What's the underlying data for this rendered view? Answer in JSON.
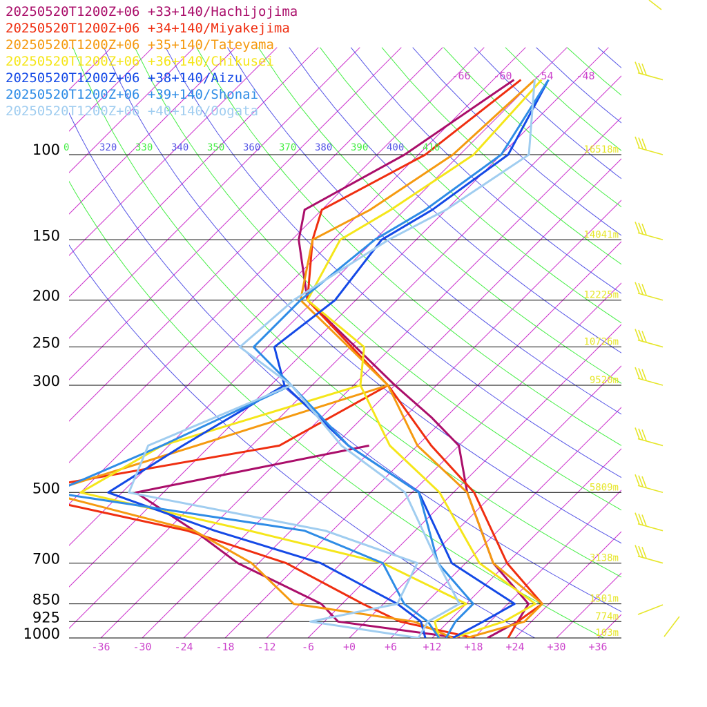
{
  "chart_data": {
    "type": "line",
    "chart_kind": "skew-T log-P sounding",
    "x_axis": {
      "label": "",
      "ticks": [
        "-36",
        "-30",
        "-24",
        "-18",
        "-12",
        "-6",
        "+0",
        "+6",
        "+12",
        "+18",
        "+24",
        "+30",
        "+36"
      ],
      "tick_values": [
        -36,
        -30,
        -24,
        -18,
        -12,
        -6,
        0,
        6,
        12,
        18,
        24,
        30,
        36
      ]
    },
    "y_axis": {
      "label": "",
      "scale": "log",
      "ticks": [
        "100",
        "150",
        "200",
        "250",
        "300",
        "500",
        "700",
        "850",
        "925",
        "1000"
      ],
      "tick_values": [
        100,
        150,
        200,
        250,
        300,
        500,
        700,
        850,
        925,
        1000
      ]
    },
    "height_labels": [
      {
        "p": 100,
        "text": "16518m"
      },
      {
        "p": 150,
        "text": "14041m"
      },
      {
        "p": 200,
        "text": "12225m"
      },
      {
        "p": 250,
        "text": "10726m"
      },
      {
        "p": 300,
        "text": "9520m"
      },
      {
        "p": 500,
        "text": "5809m"
      },
      {
        "p": 700,
        "text": "3138m"
      },
      {
        "p": 850,
        "text": "1501m"
      },
      {
        "p": 925,
        "text": "774m"
      },
      {
        "p": 1000,
        "text": "103m"
      }
    ],
    "theta_labels": [
      "0",
      "320",
      "330",
      "340",
      "350",
      "360",
      "370",
      "380",
      "390",
      "400",
      "410"
    ],
    "upper_temp_labels": [
      "-66",
      "-60",
      "-54",
      "-48"
    ],
    "grid": true,
    "legend_position": "top-left",
    "series": [
      {
        "name": "20250520T1200Z+06 +33+140/Hachijojima",
        "color": "#aa0e6a",
        "temperature": [
          [
            70,
            -57
          ],
          [
            100,
            -62
          ],
          [
            130,
            -68.5
          ],
          [
            150,
            -65
          ],
          [
            200,
            -55
          ],
          [
            300,
            -30
          ],
          [
            350,
            -20
          ],
          [
            400,
            -12
          ],
          [
            500,
            -4
          ],
          [
            700,
            10
          ],
          [
            850,
            21
          ],
          [
            925,
            22
          ],
          [
            1000,
            20
          ]
        ],
        "dewpoint": [
          [
            400,
            -25
          ],
          [
            500,
            -52
          ],
          [
            600,
            -38
          ],
          [
            700,
            -27
          ],
          [
            850,
            -9
          ],
          [
            925,
            -4
          ],
          [
            1000,
            16
          ]
        ]
      },
      {
        "name": "20250520T1200Z+06 +34+140/Miyakejima",
        "color": "#ef2e10",
        "temperature": [
          [
            70,
            -56
          ],
          [
            100,
            -59
          ],
          [
            130,
            -66
          ],
          [
            150,
            -63
          ],
          [
            200,
            -55
          ],
          [
            300,
            -31
          ],
          [
            400,
            -16
          ],
          [
            500,
            -3
          ],
          [
            700,
            12
          ],
          [
            850,
            23
          ],
          [
            925,
            22
          ],
          [
            1000,
            23
          ]
        ],
        "dewpoint": [
          [
            300,
            -31
          ],
          [
            400,
            -38
          ],
          [
            500,
            -70
          ],
          [
            600,
            -39
          ],
          [
            700,
            -20
          ],
          [
            850,
            -3
          ],
          [
            925,
            5
          ],
          [
            1000,
            18
          ]
        ]
      },
      {
        "name": "20250520T1200Z+06 +35+140/Tateyama",
        "color": "#f59a10",
        "temperature": [
          [
            70,
            -54
          ],
          [
            100,
            -55
          ],
          [
            130,
            -59
          ],
          [
            150,
            -63
          ],
          [
            200,
            -56
          ],
          [
            300,
            -31
          ],
          [
            400,
            -18
          ],
          [
            500,
            -4
          ],
          [
            700,
            10
          ],
          [
            850,
            23
          ],
          [
            925,
            23
          ],
          [
            1000,
            17
          ]
        ],
        "dewpoint": [
          [
            300,
            -31
          ],
          [
            400,
            -50
          ],
          [
            500,
            -65
          ],
          [
            600,
            -38
          ],
          [
            700,
            -25
          ],
          [
            850,
            -13
          ],
          [
            925,
            7
          ],
          [
            1000,
            15
          ]
        ]
      },
      {
        "name": "20250520T1200Z+06 +36+140/Chikusei",
        "color": "#f5e61a",
        "temperature": [
          [
            70,
            -53
          ],
          [
            100,
            -52
          ],
          [
            130,
            -56
          ],
          [
            150,
            -59
          ],
          [
            200,
            -55
          ],
          [
            250,
            -40
          ],
          [
            300,
            -35
          ],
          [
            400,
            -22
          ],
          [
            500,
            -8
          ],
          [
            700,
            8
          ],
          [
            850,
            22
          ],
          [
            925,
            20
          ],
          [
            1000,
            15
          ]
        ],
        "dewpoint": [
          [
            300,
            -35
          ],
          [
            400,
            -55
          ],
          [
            500,
            -60
          ],
          [
            600,
            -30
          ],
          [
            700,
            -6
          ],
          [
            850,
            12
          ],
          [
            925,
            10
          ],
          [
            1000,
            13
          ]
        ]
      },
      {
        "name": "20250520T1200Z+06 +38+140/Aizu",
        "color": "#1449e6",
        "temperature": [
          [
            70,
            -52
          ],
          [
            100,
            -47
          ],
          [
            130,
            -50
          ],
          [
            150,
            -53
          ],
          [
            200,
            -51
          ],
          [
            250,
            -53
          ],
          [
            300,
            -46
          ],
          [
            400,
            -28
          ],
          [
            500,
            -11
          ],
          [
            700,
            4
          ],
          [
            850,
            19
          ],
          [
            925,
            17
          ],
          [
            1000,
            15
          ]
        ],
        "dewpoint": [
          [
            300,
            -46
          ],
          [
            400,
            -52
          ],
          [
            500,
            -56
          ],
          [
            600,
            -35
          ],
          [
            700,
            -15
          ],
          [
            850,
            2
          ],
          [
            925,
            8
          ],
          [
            1000,
            11
          ]
        ]
      },
      {
        "name": "20250520T1200Z+06 +39+140/Shonai",
        "color": "#2e8ce6",
        "temperature": [
          [
            70,
            -52
          ],
          [
            100,
            -48
          ],
          [
            130,
            -51
          ],
          [
            150,
            -54
          ],
          [
            200,
            -56
          ],
          [
            250,
            -56
          ],
          [
            300,
            -45
          ],
          [
            400,
            -28
          ],
          [
            500,
            -11
          ],
          [
            700,
            2
          ],
          [
            850,
            13
          ],
          [
            925,
            13
          ],
          [
            1000,
            14
          ]
        ],
        "dewpoint": [
          [
            300,
            -45
          ],
          [
            400,
            -55
          ],
          [
            500,
            -64
          ],
          [
            600,
            -22
          ],
          [
            700,
            -6
          ],
          [
            850,
            3
          ],
          [
            925,
            9
          ],
          [
            1000,
            13
          ]
        ]
      },
      {
        "name": "20250520T1200Z+06 +40+140/Oogata",
        "color": "#a0cdf0",
        "temperature": [
          [
            70,
            -54
          ],
          [
            100,
            -44
          ],
          [
            130,
            -48
          ],
          [
            150,
            -52
          ],
          [
            200,
            -57
          ],
          [
            250,
            -58
          ],
          [
            300,
            -45
          ],
          [
            400,
            -29
          ],
          [
            500,
            -13
          ],
          [
            700,
            2
          ],
          [
            850,
            11
          ],
          [
            925,
            9
          ],
          [
            1000,
            10
          ]
        ],
        "dewpoint": [
          [
            300,
            -45
          ],
          [
            400,
            -57
          ],
          [
            500,
            -53
          ],
          [
            600,
            -19
          ],
          [
            700,
            -1
          ],
          [
            850,
            2
          ],
          [
            925,
            -8
          ],
          [
            1000,
            10
          ]
        ]
      }
    ]
  }
}
